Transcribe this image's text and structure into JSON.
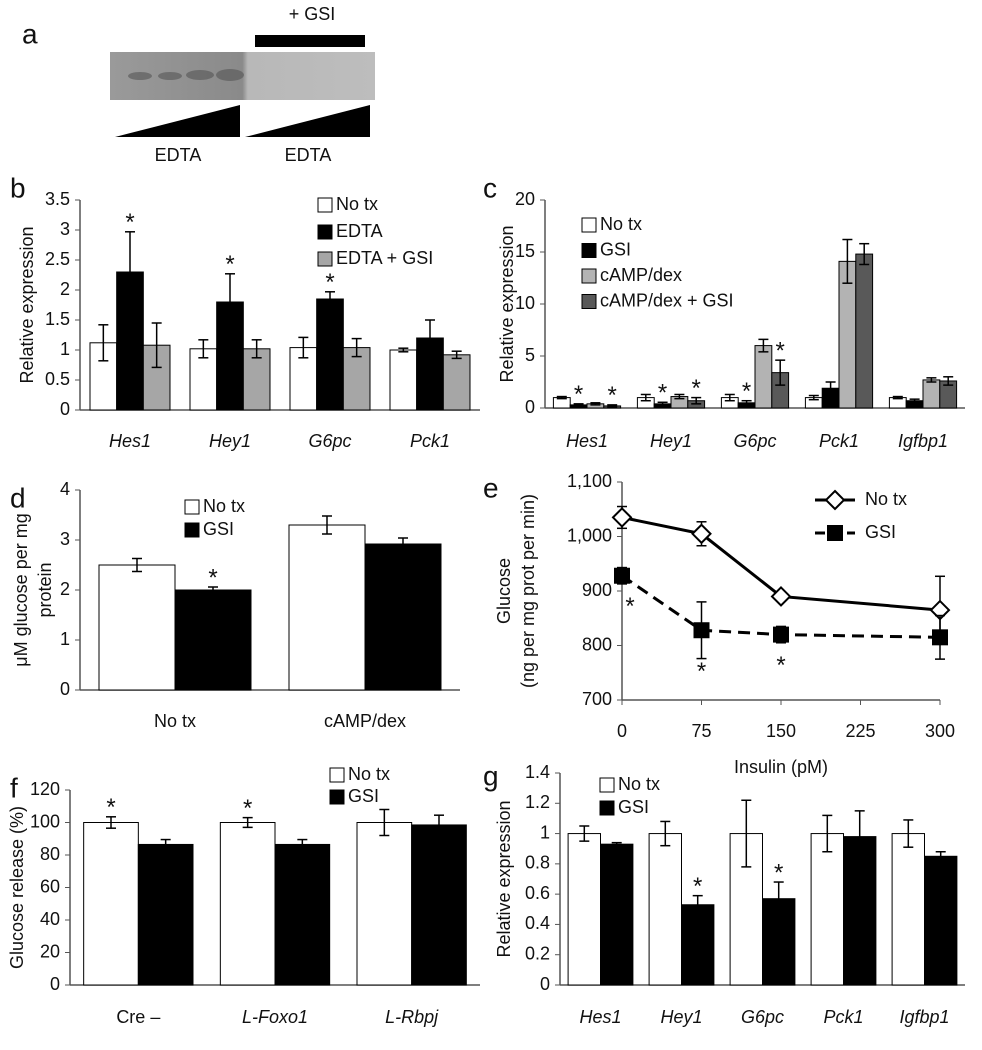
{
  "blot": {
    "panel": "a",
    "label": "+ GSI",
    "lanes": [
      "EDTA",
      "EDTA"
    ]
  },
  "chart_data": [
    {
      "type": "bar",
      "panel": "b",
      "ylabel": [
        "Relative expression"
      ],
      "categories": [
        "Hes1",
        "Hey1",
        "G6pc",
        "Pck1"
      ],
      "italic": [
        true,
        true,
        true,
        true
      ],
      "ylim": [
        0,
        3.5
      ],
      "yticks": [
        0,
        0.5,
        1,
        1.5,
        2,
        2.5,
        3,
        3.5
      ],
      "series": [
        {
          "name": "No tx",
          "color": "#ffffff",
          "values": [
            1.12,
            1.02,
            1.04,
            1.0
          ],
          "errors": [
            0.3,
            0.15,
            0.17,
            0.03
          ],
          "sig": [
            null,
            null,
            null,
            null
          ]
        },
        {
          "name": "EDTA",
          "color": "#000000",
          "values": [
            2.3,
            1.8,
            1.85,
            1.2
          ],
          "errors": [
            0.67,
            0.47,
            0.12,
            0.3
          ],
          "sig": [
            "*",
            "*",
            "*",
            null
          ]
        },
        {
          "name": "EDTA + GSI",
          "color": "#a6a6a6",
          "values": [
            1.08,
            1.02,
            1.04,
            0.92
          ],
          "errors": [
            0.37,
            0.15,
            0.15,
            0.06
          ],
          "sig": [
            null,
            null,
            null,
            null
          ]
        }
      ]
    },
    {
      "type": "bar",
      "panel": "c",
      "ylabel": [
        "Relative expression"
      ],
      "categories": [
        "Hes1",
        "Hey1",
        "G6pc",
        "Pck1",
        "Igfbp1"
      ],
      "italic": [
        true,
        true,
        true,
        true,
        true
      ],
      "ylim": [
        0,
        20
      ],
      "yticks": [
        0,
        5,
        10,
        15,
        20
      ],
      "series": [
        {
          "name": "No tx",
          "color": "#ffffff",
          "values": [
            1,
            1,
            1,
            1,
            1
          ],
          "errors": [
            0.1,
            0.3,
            0.3,
            0.2,
            0.1
          ],
          "sig": [
            null,
            null,
            null,
            null,
            null
          ]
        },
        {
          "name": "GSI",
          "color": "#000000",
          "values": [
            0.3,
            0.4,
            0.5,
            1.9,
            0.7
          ],
          "errors": [
            0.1,
            0.15,
            0.2,
            0.6,
            0.15
          ],
          "sig": [
            "*",
            "*",
            "*",
            null,
            null
          ]
        },
        {
          "name": "cAMP/dex",
          "color": "#b3b3b3",
          "values": [
            0.4,
            1.1,
            6.0,
            14.1,
            2.7
          ],
          "errors": [
            0.1,
            0.2,
            0.6,
            2.1,
            0.2
          ],
          "sig": [
            null,
            null,
            null,
            null,
            null
          ]
        },
        {
          "name": "cAMP/dex + GSI",
          "color": "#595959",
          "values": [
            0.2,
            0.7,
            3.4,
            14.8,
            2.6
          ],
          "errors": [
            0.1,
            0.3,
            1.2,
            1.0,
            0.4
          ],
          "sig": [
            "*",
            "*",
            "*",
            null,
            null
          ]
        }
      ]
    },
    {
      "type": "bar",
      "panel": "d",
      "ylabel": [
        "μM glucose per mg",
        "protein"
      ],
      "categories": [
        "No tx",
        "cAMP/dex"
      ],
      "italic": [
        false,
        false
      ],
      "ylim": [
        0,
        4
      ],
      "yticks": [
        0,
        1,
        2,
        3,
        4
      ],
      "series": [
        {
          "name": "No tx",
          "color": "#ffffff",
          "values": [
            2.5,
            3.3
          ],
          "errors": [
            0.13,
            0.18
          ],
          "sig": [
            null,
            null
          ]
        },
        {
          "name": "GSI",
          "color": "#000000",
          "values": [
            2.0,
            2.92
          ],
          "errors": [
            0.06,
            0.12
          ],
          "sig": [
            "*",
            null
          ]
        }
      ]
    },
    {
      "type": "line",
      "panel": "e",
      "ylabel": [
        "Glucose",
        "(ng per mg prot per min)"
      ],
      "xlabel": "Insulin (pM)",
      "x": [
        0,
        75,
        150,
        300
      ],
      "xlim": [
        0,
        300
      ],
      "xticks": [
        0,
        75,
        150,
        225,
        300
      ],
      "ylim": [
        700,
        1100
      ],
      "yticks": [
        {
          "value": 1100,
          "label": "1,100"
        },
        {
          "value": 1000,
          "label": "1,000"
        },
        900,
        800,
        700
      ],
      "series": [
        {
          "name": "No tx",
          "color": "#000000",
          "marker": "diamond",
          "dashed": false,
          "values": [
            1035,
            1005,
            890,
            865
          ],
          "errors": [
            20,
            22,
            8,
            62
          ],
          "sig": [
            null,
            null,
            null,
            null
          ]
        },
        {
          "name": "GSI",
          "color": "#000000",
          "marker": "square",
          "dashed": true,
          "values": [
            928,
            828,
            820,
            815
          ],
          "errors": [
            15,
            52,
            15,
            40
          ],
          "sig": [
            "*",
            "*",
            "*",
            null
          ]
        }
      ]
    },
    {
      "type": "bar",
      "panel": "f",
      "ylabel": [
        "Glucose release (%)"
      ],
      "categories": [
        "Cre –",
        "L-Foxo1",
        "L-Rbpj"
      ],
      "italic": [
        false,
        true,
        true
      ],
      "ylim": [
        0,
        120
      ],
      "yticks": [
        0,
        20,
        40,
        60,
        80,
        100,
        120
      ],
      "series": [
        {
          "name": "No tx",
          "color": "#ffffff",
          "values": [
            100,
            100,
            100
          ],
          "errors": [
            3.5,
            3,
            8
          ],
          "sig": [
            "*",
            "*",
            null
          ]
        },
        {
          "name": "GSI",
          "color": "#000000",
          "values": [
            86.5,
            86.5,
            98.5
          ],
          "errors": [
            3,
            3,
            6
          ],
          "sig": [
            null,
            null,
            null
          ]
        }
      ]
    },
    {
      "type": "bar",
      "panel": "g",
      "ylabel": [
        "Relative expression"
      ],
      "categories": [
        "Hes1",
        "Hey1",
        "G6pc",
        "Pck1",
        "Igfbp1"
      ],
      "italic": [
        true,
        true,
        true,
        true,
        true
      ],
      "ylim": [
        0,
        1.4
      ],
      "yticks": [
        0,
        0.2,
        0.4,
        0.6,
        0.8,
        1,
        1.2,
        1.4
      ],
      "series": [
        {
          "name": "No tx",
          "color": "#ffffff",
          "values": [
            1,
            1,
            1,
            1,
            1
          ],
          "errors": [
            0.05,
            0.08,
            0.22,
            0.12,
            0.09
          ],
          "sig": [
            null,
            null,
            null,
            null,
            null
          ]
        },
        {
          "name": "GSI",
          "color": "#000000",
          "values": [
            0.93,
            0.53,
            0.57,
            0.98,
            0.85
          ],
          "errors": [
            0.01,
            0.06,
            0.11,
            0.17,
            0.03
          ],
          "sig": [
            null,
            "*",
            "*",
            null,
            null
          ]
        }
      ]
    }
  ]
}
